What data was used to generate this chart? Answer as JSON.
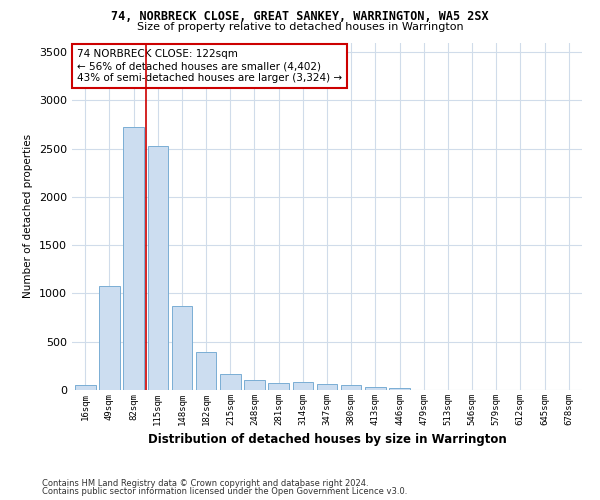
{
  "title": "74, NORBRECK CLOSE, GREAT SANKEY, WARRINGTON, WA5 2SX",
  "subtitle": "Size of property relative to detached houses in Warrington",
  "xlabel": "Distribution of detached houses by size in Warrington",
  "ylabel": "Number of detached properties",
  "categories": [
    "16sqm",
    "49sqm",
    "82sqm",
    "115sqm",
    "148sqm",
    "182sqm",
    "215sqm",
    "248sqm",
    "281sqm",
    "314sqm",
    "347sqm",
    "380sqm",
    "413sqm",
    "446sqm",
    "479sqm",
    "513sqm",
    "546sqm",
    "579sqm",
    "612sqm",
    "645sqm",
    "678sqm"
  ],
  "values": [
    50,
    1080,
    2720,
    2530,
    870,
    390,
    170,
    100,
    75,
    80,
    65,
    50,
    30,
    25,
    0,
    0,
    0,
    0,
    0,
    0,
    0
  ],
  "bar_color": "#ccddf0",
  "bar_edge_color": "#7aaed4",
  "grid_color": "#d0dcea",
  "background_color": "#ffffff",
  "annotation_text": "74 NORBRECK CLOSE: 122sqm\n← 56% of detached houses are smaller (4,402)\n43% of semi-detached houses are larger (3,324) →",
  "vline_x": 2.5,
  "annotation_box_color": "#ffffff",
  "annotation_box_edge": "#cc0000",
  "footnote1": "Contains HM Land Registry data © Crown copyright and database right 2024.",
  "footnote2": "Contains public sector information licensed under the Open Government Licence v3.0.",
  "ylim": [
    0,
    3600
  ],
  "yticks": [
    0,
    500,
    1000,
    1500,
    2000,
    2500,
    3000,
    3500
  ]
}
